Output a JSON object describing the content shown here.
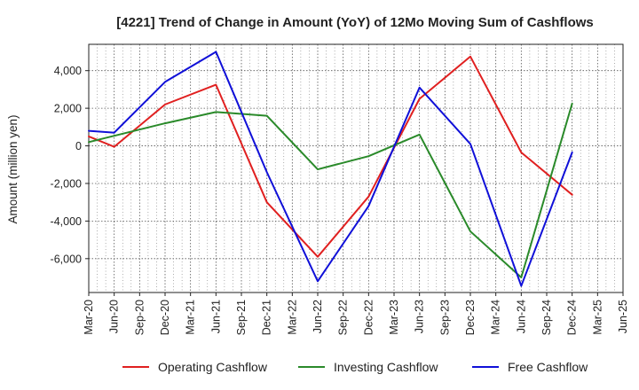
{
  "chart_data": {
    "type": "line",
    "title": "[4221]  Trend of Change in Amount (YoY) of 12Mo Moving Sum of Cashflows",
    "xlabel": "",
    "ylabel": "Amount (million yen)",
    "categories": [
      "Mar-20",
      "Jun-20",
      "Sep-20",
      "Dec-20",
      "Mar-21",
      "Jun-21",
      "Sep-21",
      "Dec-21",
      "Mar-22",
      "Jun-22",
      "Sep-22",
      "Dec-22",
      "Mar-23",
      "Jun-23",
      "Sep-23",
      "Dec-23",
      "Mar-24",
      "Jun-24",
      "Sep-24",
      "Dec-24",
      "Mar-25",
      "Jun-25"
    ],
    "ylim": [
      -7800,
      5400
    ],
    "yticks": [
      4000,
      2000,
      0,
      -2000,
      -4000,
      -6000
    ],
    "ytick_labels": [
      "4,000",
      "2,000",
      "0",
      "-2,000",
      "-4,000",
      "-6,000"
    ],
    "grid": true,
    "legend_position": "bottom",
    "series": [
      {
        "name": "Operating Cashflow",
        "color": "#e02020",
        "values": [
          500,
          -50,
          null,
          2200,
          null,
          3250,
          null,
          -3000,
          null,
          -5900,
          null,
          -2700,
          null,
          2500,
          null,
          4750,
          null,
          -350,
          null,
          -2600,
          null,
          null
        ]
      },
      {
        "name": "Investing Cashflow",
        "color": "#2a8a2a",
        "values": [
          200,
          null,
          null,
          1200,
          null,
          1800,
          null,
          1600,
          null,
          -1250,
          null,
          -550,
          null,
          600,
          null,
          -4550,
          null,
          -7000,
          null,
          2250,
          null,
          null
        ]
      },
      {
        "name": "Free Cashflow",
        "color": "#1010d8",
        "values": [
          800,
          700,
          null,
          3400,
          null,
          5000,
          null,
          -1400,
          null,
          -7200,
          null,
          -3200,
          null,
          3100,
          null,
          100,
          null,
          -7450,
          null,
          -350,
          null,
          null
        ]
      }
    ]
  }
}
